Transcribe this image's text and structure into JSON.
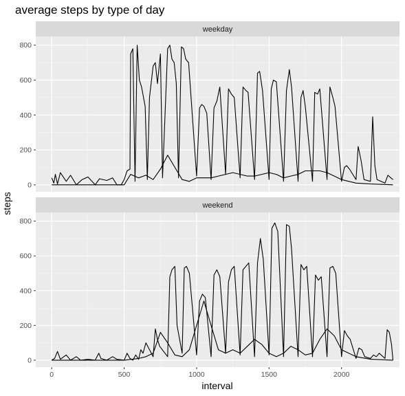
{
  "chart_data": {
    "type": "line",
    "title": "average steps by type of day",
    "xlabel": "interval",
    "ylabel": "steps",
    "xlim": [
      -110,
      2400
    ],
    "ylim": [
      -40,
      850
    ],
    "x_ticks": [
      0,
      500,
      1000,
      1500,
      2000
    ],
    "x_tick_labels": [
      "0",
      "500",
      "1000",
      "1500",
      "2000"
    ],
    "y_ticks": [
      0,
      200,
      400,
      600,
      800
    ],
    "y_tick_labels": [
      "0",
      "200",
      "400",
      "600",
      "800"
    ],
    "grid": true,
    "facets": [
      {
        "label": "weekday",
        "series": [
          {
            "x": [
              0,
              15,
              25,
              40,
              60,
              100,
              130,
              170,
              210,
              250,
              300,
              330,
              380,
              420,
              450,
              480,
              500,
              520,
              540,
              545,
              560,
              575,
              590,
              605,
              620,
              645,
              660,
              675,
              700,
              715,
              730,
              750,
              765,
              800,
              815,
              830,
              845,
              860,
              875,
              895,
              910,
              925,
              945,
              1000,
              1020,
              1035,
              1050,
              1070,
              1100,
              1120,
              1140,
              1160,
              1200,
              1220,
              1240,
              1260,
              1300,
              1320,
              1340,
              1355,
              1400,
              1420,
              1435,
              1455,
              1500,
              1515,
              1530,
              1550,
              1600,
              1620,
              1640,
              1655,
              1700,
              1720,
              1735,
              1750,
              1800,
              1815,
              1835,
              1850,
              1900,
              1920,
              1940,
              1955,
              2000,
              2020,
              2035,
              2055,
              2100,
              2115,
              2135,
              2155,
              2200,
              2215,
              2230,
              2245,
              2300,
              2320,
              2340,
              2355
            ],
            "y": [
              40,
              10,
              60,
              5,
              70,
              20,
              55,
              0,
              30,
              45,
              0,
              35,
              25,
              40,
              0,
              0,
              30,
              80,
              90,
              750,
              780,
              20,
              800,
              600,
              560,
              450,
              30,
              500,
              680,
              700,
              580,
              750,
              40,
              780,
              800,
              720,
              700,
              580,
              40,
              790,
              780,
              720,
              700,
              50,
              440,
              460,
              450,
              410,
              30,
              440,
              480,
              560,
              60,
              550,
              520,
              500,
              40,
              560,
              540,
              530,
              30,
              640,
              650,
              540,
              30,
              550,
              600,
              590,
              20,
              540,
              660,
              560,
              20,
              500,
              540,
              450,
              20,
              530,
              520,
              550,
              30,
              560,
              500,
              450,
              20,
              100,
              110,
              90,
              30,
              220,
              140,
              30,
              20,
              390,
              110,
              30,
              10,
              55,
              40,
              30
            ]
          },
          {
            "x": [
              0,
              100,
              200,
              300,
              400,
              500,
              545,
              600,
              650,
              700,
              750,
              800,
              850,
              900,
              950,
              1000,
              1100,
              1150,
              1200,
              1250,
              1300,
              1350,
              1400,
              1450,
              1500,
              1550,
              1600,
              1650,
              1700,
              1750,
              1800,
              1850,
              1900,
              1950,
              2000,
              2050,
              2100,
              2200,
              2355
            ],
            "y": [
              0,
              0,
              0,
              0,
              0,
              0,
              60,
              40,
              55,
              30,
              90,
              170,
              100,
              30,
              20,
              40,
              40,
              50,
              60,
              70,
              60,
              50,
              50,
              60,
              70,
              60,
              40,
              50,
              60,
              80,
              80,
              80,
              70,
              50,
              30,
              20,
              10,
              5,
              0
            ]
          }
        ]
      },
      {
        "label": "weekend",
        "series": [
          {
            "x": [
              0,
              20,
              40,
              60,
              100,
              130,
              170,
              200,
              250,
              300,
              325,
              340,
              380,
              420,
              450,
              500,
              520,
              540,
              560,
              580,
              600,
              615,
              630,
              650,
              700,
              715,
              730,
              745,
              800,
              815,
              830,
              850,
              865,
              900,
              915,
              930,
              950,
              1000,
              1020,
              1040,
              1060,
              1100,
              1120,
              1140,
              1160,
              1200,
              1220,
              1240,
              1260,
              1300,
              1320,
              1340,
              1360,
              1400,
              1420,
              1440,
              1460,
              1500,
              1520,
              1540,
              1560,
              1600,
              1620,
              1640,
              1655,
              1700,
              1720,
              1740,
              1760,
              1800,
              1820,
              1840,
              1860,
              1900,
              1920,
              1940,
              1960,
              2000,
              2020,
              2040,
              2060,
              2100,
              2120,
              2140,
              2160,
              2200,
              2220,
              2240,
              2260,
              2300,
              2315,
              2330,
              2345,
              2355
            ],
            "y": [
              0,
              10,
              50,
              5,
              30,
              0,
              20,
              0,
              5,
              0,
              40,
              10,
              0,
              20,
              5,
              0,
              40,
              10,
              0,
              30,
              5,
              60,
              40,
              100,
              20,
              180,
              120,
              80,
              20,
              480,
              520,
              540,
              200,
              40,
              530,
              540,
              500,
              30,
              340,
              380,
              360,
              20,
              490,
              520,
              480,
              40,
              450,
              520,
              540,
              30,
              520,
              540,
              560,
              20,
              560,
              700,
              580,
              30,
              760,
              790,
              740,
              20,
              780,
              770,
              640,
              20,
              550,
              520,
              540,
              20,
              490,
              460,
              480,
              20,
              530,
              540,
              500,
              20,
              170,
              140,
              120,
              10,
              70,
              60,
              20,
              10,
              30,
              20,
              40,
              10,
              175,
              160,
              90,
              0
            ]
          },
          {
            "x": [
              0,
              100,
              200,
              300,
              400,
              500,
              600,
              650,
              700,
              750,
              800,
              850,
              900,
              950,
              1000,
              1050,
              1100,
              1150,
              1200,
              1250,
              1300,
              1350,
              1400,
              1450,
              1500,
              1550,
              1600,
              1650,
              1700,
              1750,
              1800,
              1850,
              1900,
              1950,
              2000,
              2050,
              2100,
              2200,
              2355
            ],
            "y": [
              0,
              0,
              0,
              0,
              0,
              0,
              10,
              20,
              40,
              160,
              100,
              30,
              20,
              60,
              200,
              340,
              200,
              60,
              40,
              60,
              40,
              80,
              120,
              90,
              40,
              20,
              40,
              80,
              60,
              30,
              40,
              120,
              180,
              140,
              60,
              40,
              20,
              5,
              0
            ]
          }
        ]
      }
    ]
  }
}
